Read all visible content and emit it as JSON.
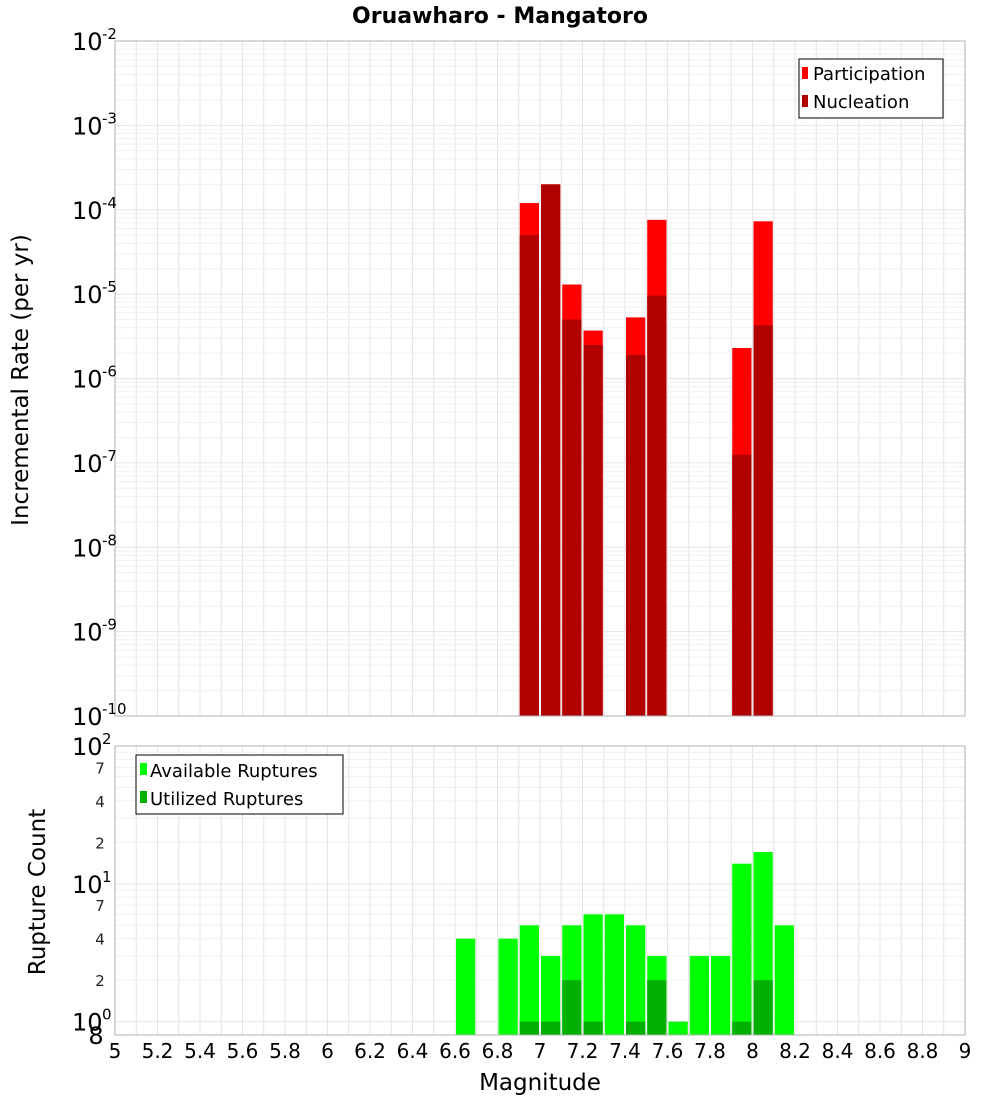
{
  "chart_data": [
    {
      "type": "bar",
      "title": "Oruawharo - Mangatoro",
      "xlabel": "Magnitude",
      "ylabel": "Incremental Rate (per yr)",
      "yscale": "log",
      "xlim": [
        5,
        9
      ],
      "ylim": [
        1e-10,
        0.01
      ],
      "x_ticks": [
        "5",
        "5.2",
        "5.4",
        "5.6",
        "5.8",
        "6",
        "6.2",
        "6.4",
        "6.6",
        "6.8",
        "7",
        "7.2",
        "7.4",
        "7.6",
        "7.8",
        "8",
        "8.2",
        "8.4",
        "8.6",
        "8.8",
        "9"
      ],
      "y_ticks": [
        {
          "base": "10",
          "exp": "-10",
          "value": 1e-10
        },
        {
          "base": "10",
          "exp": "-9",
          "value": 1e-09
        },
        {
          "base": "10",
          "exp": "-8",
          "value": 1e-08
        },
        {
          "base": "10",
          "exp": "-7",
          "value": 1e-07
        },
        {
          "base": "10",
          "exp": "-6",
          "value": 1e-06
        },
        {
          "base": "10",
          "exp": "-5",
          "value": 1e-05
        },
        {
          "base": "10",
          "exp": "-4",
          "value": 0.0001
        },
        {
          "base": "10",
          "exp": "-3",
          "value": 0.001
        },
        {
          "base": "10",
          "exp": "-2",
          "value": 0.01
        }
      ],
      "legend_position": "top-right",
      "bin_width": 0.1,
      "series": [
        {
          "name": "Participation",
          "color": "#ff0000",
          "x": [
            6.95,
            7.05,
            7.15,
            7.25,
            7.45,
            7.55,
            7.95,
            8.05
          ],
          "values": [
            0.00012,
            0.0002,
            1.3e-05,
            3.7e-06,
            5.3e-06,
            7.6e-05,
            2.3e-06,
            7.3e-05
          ]
        },
        {
          "name": "Nucleation",
          "color": "#b00000",
          "x": [
            6.95,
            7.05,
            7.15,
            7.25,
            7.45,
            7.55,
            7.95,
            8.05
          ],
          "values": [
            5e-05,
            0.0002,
            5e-06,
            2.5e-06,
            1.9e-06,
            9.6e-06,
            1.25e-07,
            4.3e-06
          ]
        }
      ]
    },
    {
      "type": "bar",
      "xlabel": "Magnitude",
      "ylabel": "Rupture Count",
      "yscale": "log",
      "xlim": [
        5,
        9
      ],
      "ylim": [
        0.8,
        100
      ],
      "x_ticks": [
        "5",
        "5.2",
        "5.4",
        "5.6",
        "5.8",
        "6",
        "6.2",
        "6.4",
        "6.6",
        "6.8",
        "7",
        "7.2",
        "7.4",
        "7.6",
        "7.8",
        "8",
        "8.2",
        "8.4",
        "8.6",
        "8.8",
        "9"
      ],
      "y_major_ticks": [
        {
          "base": "10",
          "exp": "0",
          "value": 1
        },
        {
          "base": "10",
          "exp": "1",
          "value": 10
        },
        {
          "base": "10",
          "exp": "2",
          "value": 100
        }
      ],
      "y_minor_ticks": [
        {
          "label": "8",
          "value": 0.8
        },
        {
          "label": "2",
          "value": 2
        },
        {
          "label": "4",
          "value": 4
        },
        {
          "label": "7",
          "value": 7
        },
        {
          "label": "2",
          "value": 20
        },
        {
          "label": "4",
          "value": 40
        },
        {
          "label": "7",
          "value": 70
        }
      ],
      "legend_position": "top-left",
      "bin_width": 0.1,
      "series": [
        {
          "name": "Available Ruptures",
          "color": "#00ff00",
          "x": [
            6.65,
            6.85,
            6.95,
            7.05,
            7.15,
            7.25,
            7.35,
            7.45,
            7.55,
            7.65,
            7.75,
            7.85,
            7.95,
            8.05,
            8.15
          ],
          "values": [
            4,
            4,
            5,
            3,
            5,
            6,
            6,
            5,
            3,
            1,
            3,
            3,
            14,
            17,
            5
          ]
        },
        {
          "name": "Utilized Ruptures",
          "color": "#00b000",
          "x": [
            6.95,
            7.05,
            7.15,
            7.25,
            7.45,
            7.55,
            7.95,
            8.05
          ],
          "values": [
            1,
            1,
            2,
            1,
            1,
            2,
            1,
            2
          ]
        }
      ]
    }
  ]
}
